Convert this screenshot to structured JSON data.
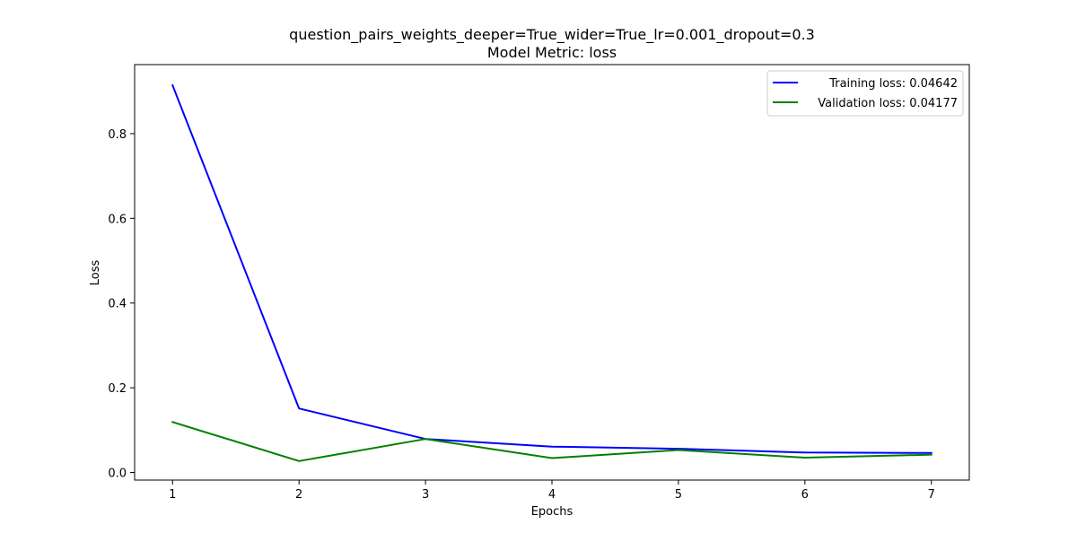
{
  "chart_data": {
    "type": "line",
    "title": "question_pairs_weights_deeper=True_wider=True_lr=0.001_dropout=0.3",
    "subtitle": "Model Metric: loss",
    "xlabel": "Epochs",
    "ylabel": "Loss",
    "x": [
      1,
      2,
      3,
      4,
      5,
      6,
      7
    ],
    "xlim": [
      0.7,
      7.3
    ],
    "ylim": [
      -0.018,
      0.963
    ],
    "xticks": [
      1,
      2,
      3,
      4,
      5,
      6,
      7
    ],
    "yticks": [
      0.0,
      0.2,
      0.4,
      0.6,
      0.8
    ],
    "ytick_labels": [
      "0.0",
      "0.2",
      "0.4",
      "0.6",
      "0.8"
    ],
    "grid": false,
    "legend_position": "top-right",
    "series": [
      {
        "name": "Training loss: 0.04642",
        "color": "#0000ff",
        "values": [
          0.914,
          0.151,
          0.079,
          0.061,
          0.056,
          0.047,
          0.046
        ]
      },
      {
        "name": "Validation loss: 0.04177",
        "color": "#008000",
        "values": [
          0.119,
          0.027,
          0.079,
          0.034,
          0.053,
          0.035,
          0.042
        ]
      }
    ]
  }
}
